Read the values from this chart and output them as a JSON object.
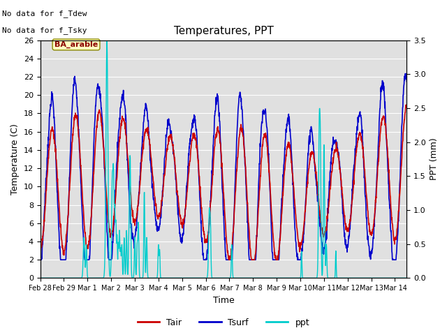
{
  "title": "Temperatures, PPT",
  "xlabel": "Time",
  "ylabel_left": "Temperature (C)",
  "ylabel_right": "PPT (mm)",
  "text_line1": "No data for f_Tdew",
  "text_line2": "No data for f_Tsky",
  "box_label": "BA_arable",
  "xlim": [
    0,
    15.5
  ],
  "ylim_left": [
    0,
    26
  ],
  "ylim_right": [
    0,
    3.5
  ],
  "yticks_left": [
    0,
    2,
    4,
    6,
    8,
    10,
    12,
    14,
    16,
    18,
    20,
    22,
    24,
    26
  ],
  "yticks_right": [
    0.0,
    0.5,
    1.0,
    1.5,
    2.0,
    2.5,
    3.0,
    3.5
  ],
  "color_tair": "#cc0000",
  "color_tsurf": "#0000cc",
  "color_ppt": "#00cccc",
  "bg_color": "#e0e0e0",
  "grid_color": "white",
  "lw_tair": 1.2,
  "lw_tsurf": 1.2,
  "lw_ppt": 1.0,
  "legend_labels": [
    "Tair",
    "Tsurf",
    "ppt"
  ],
  "tick_labels": [
    "Feb 28",
    "Feb 29",
    "Mar 1",
    "Mar 2",
    "Mar 3",
    "Mar 4",
    "Mar 5",
    "Mar 6",
    "Mar 7",
    "Mar 8",
    "Mar 9",
    "Mar 10",
    "Mar 11",
    "Mar 12",
    "Mar 13",
    "Mar 14"
  ],
  "tick_positions": [
    0,
    1,
    2,
    3,
    4,
    5,
    6,
    7,
    8,
    9,
    10,
    11,
    12,
    13,
    14,
    15
  ]
}
